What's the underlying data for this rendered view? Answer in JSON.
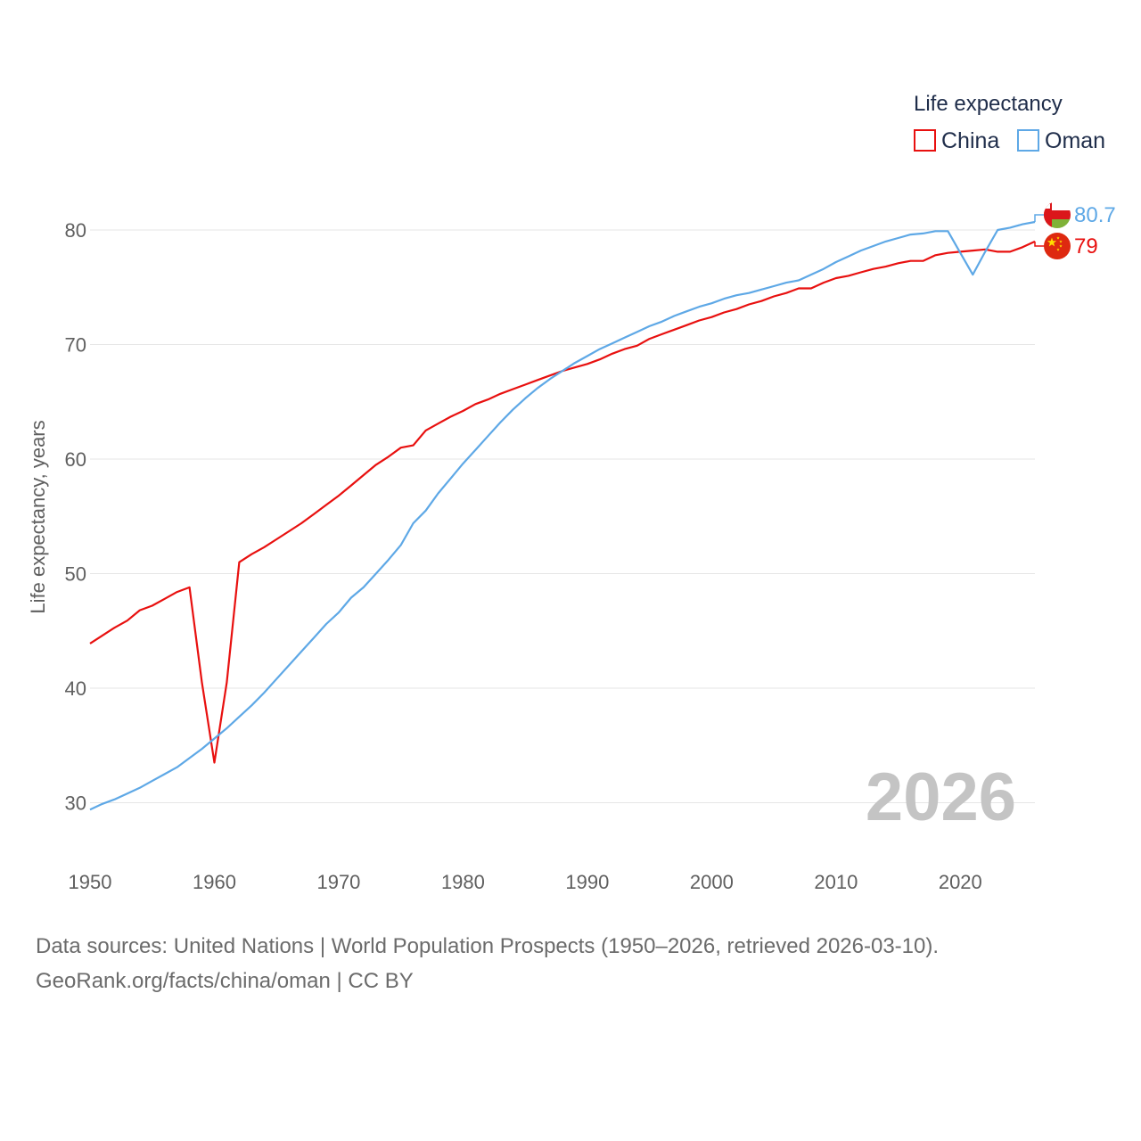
{
  "colors": {
    "china": "#e8100f",
    "oman": "#5ea8e6",
    "grid": "#e6e6e6",
    "axis_text": "#5f5f5f",
    "watermark": "#c4c4c4"
  },
  "chart_data": {
    "type": "line",
    "title": "",
    "xlabel": "",
    "ylabel": "Life expectancy, years",
    "xlim": [
      1950,
      2026
    ],
    "ylim": [
      25,
      83
    ],
    "x_ticks": [
      1950,
      1960,
      1970,
      1980,
      1990,
      2000,
      2010,
      2020
    ],
    "y_ticks": [
      30,
      40,
      50,
      60,
      70,
      80
    ],
    "grid": true,
    "legend_title": "Life expectancy",
    "legend_position": "top-right",
    "year_watermark": "2026",
    "x": [
      1950,
      1951,
      1952,
      1953,
      1954,
      1955,
      1956,
      1957,
      1958,
      1959,
      1960,
      1961,
      1962,
      1963,
      1964,
      1965,
      1966,
      1967,
      1968,
      1969,
      1970,
      1971,
      1972,
      1973,
      1974,
      1975,
      1976,
      1977,
      1978,
      1979,
      1980,
      1981,
      1982,
      1983,
      1984,
      1985,
      1986,
      1987,
      1988,
      1989,
      1990,
      1991,
      1992,
      1993,
      1994,
      1995,
      1996,
      1997,
      1998,
      1999,
      2000,
      2001,
      2002,
      2003,
      2004,
      2005,
      2006,
      2007,
      2008,
      2009,
      2010,
      2011,
      2012,
      2013,
      2014,
      2015,
      2016,
      2017,
      2018,
      2019,
      2020,
      2021,
      2022,
      2023,
      2024,
      2025,
      2026
    ],
    "series": [
      {
        "name": "China",
        "color": "#e8100f",
        "end_label": "79",
        "flag": "china-flag",
        "values": [
          43.9,
          44.6,
          45.3,
          45.9,
          46.8,
          47.2,
          47.8,
          48.4,
          48.8,
          40.5,
          33.5,
          40.5,
          51.0,
          51.7,
          52.3,
          53.0,
          53.7,
          54.4,
          55.2,
          56.0,
          56.8,
          57.7,
          58.6,
          59.5,
          60.2,
          61.0,
          61.2,
          62.5,
          63.1,
          63.7,
          64.2,
          64.8,
          65.2,
          65.7,
          66.1,
          66.5,
          66.9,
          67.3,
          67.7,
          68.0,
          68.3,
          68.7,
          69.2,
          69.6,
          69.9,
          70.5,
          70.9,
          71.3,
          71.7,
          72.1,
          72.4,
          72.8,
          73.1,
          73.5,
          73.8,
          74.2,
          74.5,
          74.9,
          74.9,
          75.4,
          75.8,
          76.0,
          76.3,
          76.6,
          76.8,
          77.1,
          77.3,
          77.3,
          77.8,
          78.0,
          78.1,
          78.2,
          78.3,
          78.1,
          78.1,
          78.5,
          79.0
        ]
      },
      {
        "name": "Oman",
        "color": "#5ea8e6",
        "end_label": "80.7",
        "flag": "oman-flag",
        "values": [
          29.4,
          29.9,
          30.3,
          30.8,
          31.3,
          31.9,
          32.5,
          33.1,
          33.9,
          34.7,
          35.6,
          36.5,
          37.5,
          38.5,
          39.6,
          40.8,
          42.0,
          43.2,
          44.4,
          45.6,
          46.6,
          47.9,
          48.8,
          50.0,
          51.2,
          52.5,
          54.4,
          55.5,
          57.0,
          58.3,
          59.6,
          60.8,
          62.0,
          63.2,
          64.3,
          65.3,
          66.2,
          67.0,
          67.7,
          68.4,
          69.0,
          69.6,
          70.1,
          70.6,
          71.1,
          71.6,
          72.0,
          72.5,
          72.9,
          73.3,
          73.6,
          74.0,
          74.3,
          74.5,
          74.8,
          75.1,
          75.4,
          75.6,
          76.1,
          76.6,
          77.2,
          77.7,
          78.2,
          78.6,
          79.0,
          79.3,
          79.6,
          79.7,
          79.9,
          79.9,
          78.0,
          76.1,
          78.1,
          80.0,
          80.2,
          80.5,
          80.7
        ]
      }
    ]
  },
  "footer": {
    "line1": "Data sources: United Nations | World Population Prospects (1950–2026, retrieved 2026-03-10).",
    "line2": "GeoRank.org/facts/china/oman | CC BY"
  }
}
